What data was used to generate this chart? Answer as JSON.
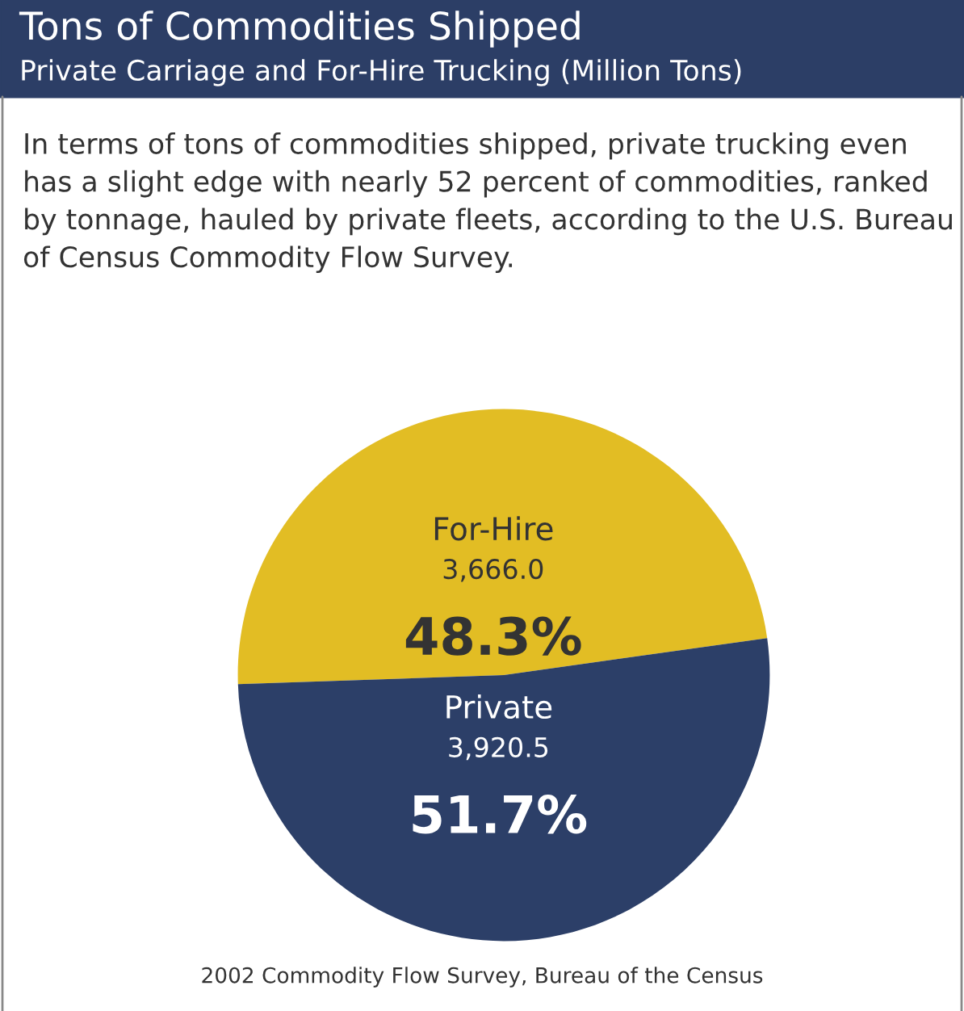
{
  "chart_data": {
    "type": "pie",
    "title": "Tons of Commodities Shipped",
    "subtitle": "Private Carriage and For-Hire Trucking (Million Tons)",
    "categories": [
      "For-Hire",
      "Private"
    ],
    "values": [
      3666.0,
      3920.5
    ],
    "colors": [
      "#e2bd24",
      "#2c3f68"
    ],
    "value_labels": [
      "3,666.0",
      "3,920.5"
    ],
    "annotations": [
      "In terms of tons of commodities shipped, private trucking even has a slight edge with nearly 52 percent of commodities, ranked by tonnage, hauled by private fleets, according to the U.S. Bureau of Census Commodity Flow Survey.",
      {
        "text": "48.3%",
        "x": "For-Hire"
      },
      {
        "text": "51.7%",
        "x": "Private"
      },
      "2002 Commodity Flow Survey, Bureau of the Census"
    ],
    "legend": false
  }
}
